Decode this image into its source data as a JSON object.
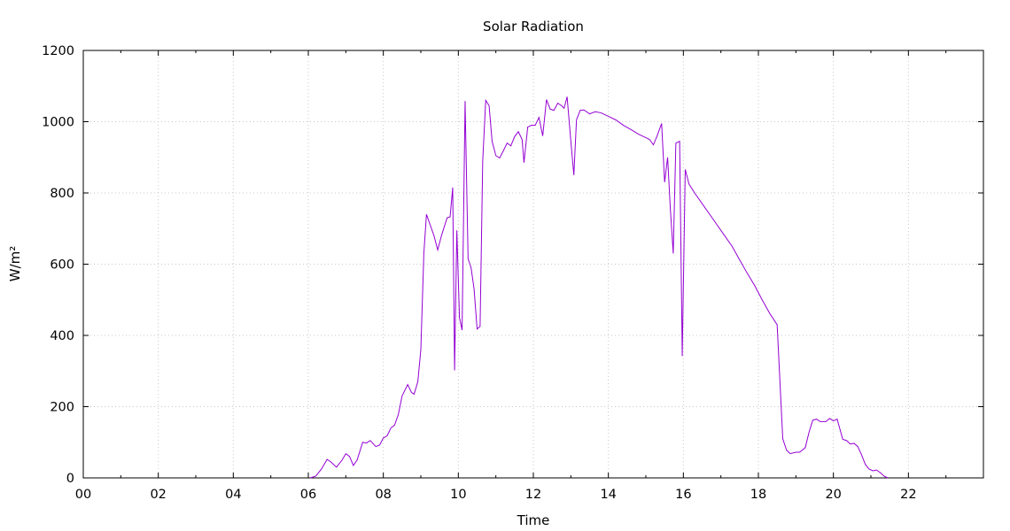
{
  "chart_data": {
    "type": "line",
    "title": "Solar Radiation",
    "xlabel": "Time",
    "ylabel": "W/m²",
    "xlim": [
      0,
      24
    ],
    "ylim": [
      0,
      1200
    ],
    "grid": true,
    "x_ticks": [
      {
        "value": 0,
        "label": "00"
      },
      {
        "value": 2,
        "label": "02"
      },
      {
        "value": 4,
        "label": "04"
      },
      {
        "value": 6,
        "label": "06"
      },
      {
        "value": 8,
        "label": "08"
      },
      {
        "value": 10,
        "label": "10"
      },
      {
        "value": 12,
        "label": "12"
      },
      {
        "value": 14,
        "label": "14"
      },
      {
        "value": 16,
        "label": "16"
      },
      {
        "value": 18,
        "label": "18"
      },
      {
        "value": 20,
        "label": "20"
      },
      {
        "value": 22,
        "label": "22"
      }
    ],
    "y_ticks": [
      {
        "value": 0,
        "label": "0"
      },
      {
        "value": 200,
        "label": "200"
      },
      {
        "value": 400,
        "label": "400"
      },
      {
        "value": 600,
        "label": "600"
      },
      {
        "value": 800,
        "label": "800"
      },
      {
        "value": 1000,
        "label": "1000"
      },
      {
        "value": 1200,
        "label": "1200"
      }
    ],
    "series": [
      {
        "color": "#9400d3",
        "points": [
          [
            6.05,
            0
          ],
          [
            6.2,
            5
          ],
          [
            6.35,
            25
          ],
          [
            6.5,
            52
          ],
          [
            6.6,
            45
          ],
          [
            6.75,
            30
          ],
          [
            6.9,
            50
          ],
          [
            7.0,
            68
          ],
          [
            7.1,
            60
          ],
          [
            7.2,
            35
          ],
          [
            7.3,
            50
          ],
          [
            7.45,
            100
          ],
          [
            7.55,
            98
          ],
          [
            7.65,
            105
          ],
          [
            7.8,
            88
          ],
          [
            7.9,
            92
          ],
          [
            8.0,
            112
          ],
          [
            8.1,
            118
          ],
          [
            8.2,
            140
          ],
          [
            8.3,
            148
          ],
          [
            8.4,
            178
          ],
          [
            8.5,
            230
          ],
          [
            8.65,
            262
          ],
          [
            8.75,
            240
          ],
          [
            8.82,
            235
          ],
          [
            8.92,
            270
          ],
          [
            9.0,
            360
          ],
          [
            9.08,
            630
          ],
          [
            9.15,
            740
          ],
          [
            9.25,
            710
          ],
          [
            9.35,
            680
          ],
          [
            9.45,
            640
          ],
          [
            9.55,
            680
          ],
          [
            9.7,
            730
          ],
          [
            9.78,
            733
          ],
          [
            9.85,
            815
          ],
          [
            9.9,
            302
          ],
          [
            9.96,
            695
          ],
          [
            10.03,
            450
          ],
          [
            10.1,
            415
          ],
          [
            10.18,
            1058
          ],
          [
            10.26,
            615
          ],
          [
            10.34,
            590
          ],
          [
            10.42,
            530
          ],
          [
            10.5,
            418
          ],
          [
            10.58,
            425
          ],
          [
            10.65,
            890
          ],
          [
            10.73,
            1060
          ],
          [
            10.82,
            1045
          ],
          [
            10.9,
            945
          ],
          [
            11.0,
            905
          ],
          [
            11.1,
            898
          ],
          [
            11.2,
            918
          ],
          [
            11.3,
            940
          ],
          [
            11.4,
            932
          ],
          [
            11.5,
            958
          ],
          [
            11.6,
            972
          ],
          [
            11.7,
            950
          ],
          [
            11.75,
            885
          ],
          [
            11.85,
            985
          ],
          [
            11.95,
            990
          ],
          [
            12.05,
            990
          ],
          [
            12.15,
            1012
          ],
          [
            12.25,
            960
          ],
          [
            12.35,
            1062
          ],
          [
            12.45,
            1035
          ],
          [
            12.55,
            1032
          ],
          [
            12.65,
            1052
          ],
          [
            12.75,
            1045
          ],
          [
            12.82,
            1038
          ],
          [
            12.9,
            1070
          ],
          [
            13.0,
            945
          ],
          [
            13.08,
            850
          ],
          [
            13.15,
            1005
          ],
          [
            13.25,
            1032
          ],
          [
            13.35,
            1033
          ],
          [
            13.5,
            1022
          ],
          [
            13.65,
            1028
          ],
          [
            13.8,
            1025
          ],
          [
            14.0,
            1015
          ],
          [
            14.2,
            1005
          ],
          [
            14.4,
            990
          ],
          [
            14.6,
            978
          ],
          [
            14.8,
            965
          ],
          [
            15.0,
            955
          ],
          [
            15.1,
            950
          ],
          [
            15.2,
            935
          ],
          [
            15.3,
            960
          ],
          [
            15.42,
            995
          ],
          [
            15.5,
            830
          ],
          [
            15.58,
            900
          ],
          [
            15.65,
            760
          ],
          [
            15.73,
            630
          ],
          [
            15.8,
            940
          ],
          [
            15.9,
            945
          ],
          [
            15.97,
            342
          ],
          [
            16.05,
            866
          ],
          [
            16.15,
            825
          ],
          [
            16.3,
            800
          ],
          [
            16.5,
            770
          ],
          [
            16.7,
            740
          ],
          [
            16.9,
            710
          ],
          [
            17.1,
            680
          ],
          [
            17.3,
            650
          ],
          [
            17.5,
            612
          ],
          [
            17.7,
            575
          ],
          [
            17.9,
            540
          ],
          [
            18.1,
            500
          ],
          [
            18.3,
            462
          ],
          [
            18.5,
            430
          ],
          [
            18.65,
            110
          ],
          [
            18.75,
            78
          ],
          [
            18.85,
            68
          ],
          [
            19.0,
            72
          ],
          [
            19.1,
            72
          ],
          [
            19.25,
            85
          ],
          [
            19.35,
            128
          ],
          [
            19.45,
            162
          ],
          [
            19.55,
            165
          ],
          [
            19.65,
            158
          ],
          [
            19.8,
            158
          ],
          [
            19.9,
            167
          ],
          [
            20.0,
            160
          ],
          [
            20.1,
            165
          ],
          [
            20.25,
            108
          ],
          [
            20.35,
            105
          ],
          [
            20.45,
            95
          ],
          [
            20.55,
            97
          ],
          [
            20.65,
            88
          ],
          [
            20.75,
            65
          ],
          [
            20.85,
            38
          ],
          [
            20.95,
            25
          ],
          [
            21.05,
            20
          ],
          [
            21.15,
            22
          ],
          [
            21.25,
            15
          ],
          [
            21.35,
            5
          ],
          [
            21.45,
            0
          ]
        ]
      }
    ]
  }
}
